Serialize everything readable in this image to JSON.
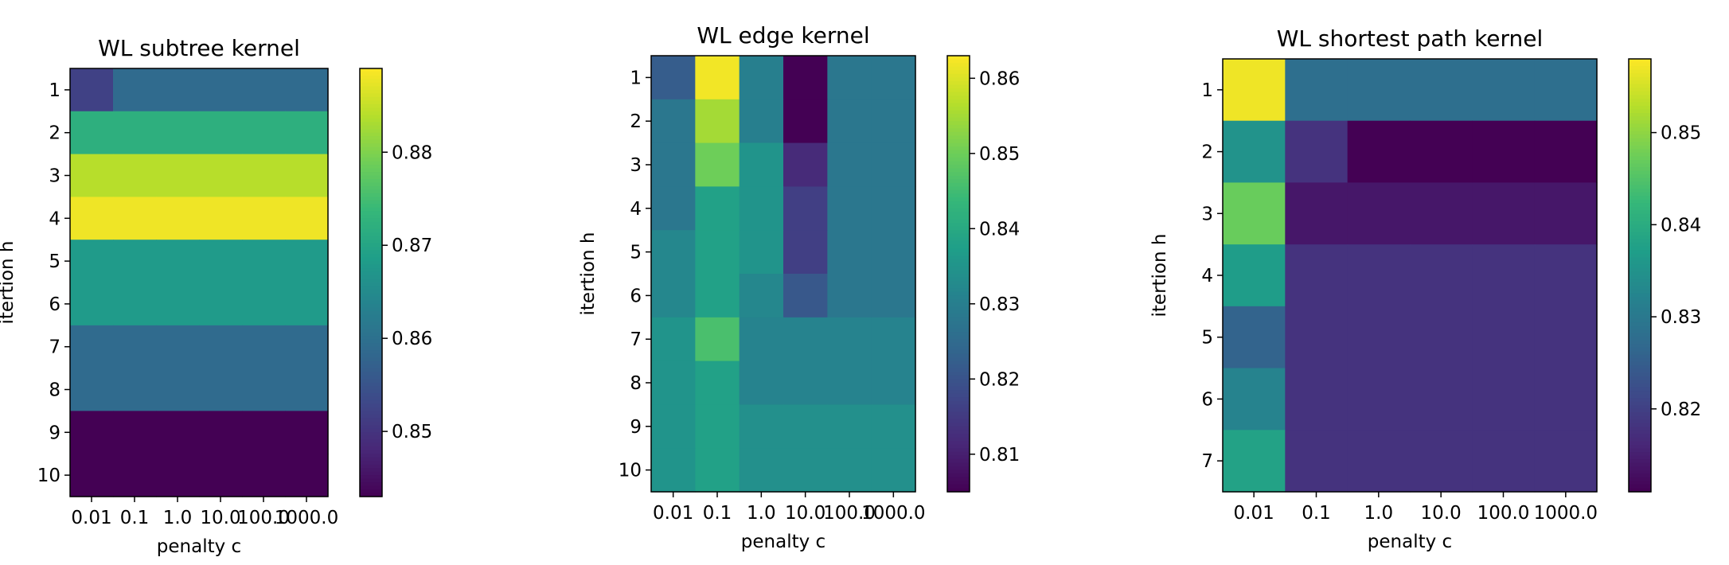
{
  "colormap": [
    "#440154",
    "#482878",
    "#3e4989",
    "#31688e",
    "#26828e",
    "#1f9e89",
    "#35b779",
    "#6ece58",
    "#b5de2b",
    "#fde725"
  ],
  "chart_data": [
    {
      "type": "heatmap",
      "title": "WL subtree kernel",
      "xlabel": "penalty c",
      "ylabel": "itertion h",
      "x_ticks": [
        "0.01",
        "0.1",
        "1.0",
        "10.0",
        "100.0",
        "1000.0"
      ],
      "y_ticks": [
        "1",
        "2",
        "3",
        "4",
        "5",
        "6",
        "7",
        "8",
        "9",
        "10"
      ],
      "values": [
        [
          0.852,
          0.859,
          0.859,
          0.859,
          0.859,
          0.859
        ],
        [
          0.872,
          0.872,
          0.872,
          0.872,
          0.872,
          0.872
        ],
        [
          0.884,
          0.884,
          0.884,
          0.884,
          0.884,
          0.884
        ],
        [
          0.888,
          0.888,
          0.888,
          0.888,
          0.888,
          0.888
        ],
        [
          0.868,
          0.868,
          0.868,
          0.868,
          0.868,
          0.868
        ],
        [
          0.868,
          0.868,
          0.868,
          0.868,
          0.868,
          0.868
        ],
        [
          0.859,
          0.859,
          0.859,
          0.859,
          0.859,
          0.859
        ],
        [
          0.859,
          0.859,
          0.859,
          0.859,
          0.859,
          0.859
        ],
        [
          0.843,
          0.843,
          0.843,
          0.843,
          0.843,
          0.843
        ],
        [
          0.843,
          0.843,
          0.843,
          0.843,
          0.843,
          0.843
        ]
      ],
      "vmin": 0.843,
      "vmax": 0.889,
      "colorbar_ticks": [
        "0.85",
        "0.86",
        "0.87",
        "0.88"
      ],
      "colorbar_tick_values": [
        0.85,
        0.86,
        0.87,
        0.88
      ]
    },
    {
      "type": "heatmap",
      "title": "WL edge kernel",
      "xlabel": "penalty c",
      "ylabel": "itertion h",
      "x_ticks": [
        "0.01",
        "0.1",
        "1.0",
        "10.0",
        "100.0",
        "1000.0"
      ],
      "y_ticks": [
        "1",
        "2",
        "3",
        "4",
        "5",
        "6",
        "7",
        "8",
        "9",
        "10"
      ],
      "values": [
        [
          0.822,
          0.862,
          0.83,
          0.805,
          0.828,
          0.828
        ],
        [
          0.828,
          0.855,
          0.83,
          0.805,
          0.828,
          0.828
        ],
        [
          0.828,
          0.85,
          0.835,
          0.812,
          0.828,
          0.828
        ],
        [
          0.828,
          0.838,
          0.835,
          0.816,
          0.828,
          0.828
        ],
        [
          0.832,
          0.838,
          0.835,
          0.816,
          0.828,
          0.828
        ],
        [
          0.832,
          0.838,
          0.832,
          0.821,
          0.828,
          0.828
        ],
        [
          0.835,
          0.846,
          0.831,
          0.831,
          0.831,
          0.831
        ],
        [
          0.835,
          0.838,
          0.831,
          0.831,
          0.831,
          0.831
        ],
        [
          0.835,
          0.838,
          0.834,
          0.834,
          0.834,
          0.834
        ],
        [
          0.835,
          0.838,
          0.834,
          0.834,
          0.834,
          0.834
        ]
      ],
      "vmin": 0.805,
      "vmax": 0.863,
      "colorbar_ticks": [
        "0.81",
        "0.82",
        "0.83",
        "0.84",
        "0.85",
        "0.86"
      ],
      "colorbar_tick_values": [
        0.81,
        0.82,
        0.83,
        0.84,
        0.85,
        0.86
      ]
    },
    {
      "type": "heatmap",
      "title": "WL shortest path kernel",
      "xlabel": "penalty c",
      "ylabel": "itertion h",
      "x_ticks": [
        "0.01",
        "0.1",
        "1.0",
        "10.0",
        "100.0",
        "1000.0"
      ],
      "y_ticks": [
        "1",
        "2",
        "3",
        "4",
        "5",
        "6",
        "7"
      ],
      "values": [
        [
          0.857,
          0.828,
          0.828,
          0.828,
          0.828,
          0.828
        ],
        [
          0.835,
          0.818,
          0.811,
          0.811,
          0.811,
          0.811
        ],
        [
          0.847,
          0.814,
          0.814,
          0.814,
          0.814,
          0.814
        ],
        [
          0.837,
          0.818,
          0.818,
          0.818,
          0.818,
          0.818
        ],
        [
          0.826,
          0.818,
          0.818,
          0.818,
          0.818,
          0.818
        ],
        [
          0.832,
          0.818,
          0.818,
          0.818,
          0.818,
          0.818
        ],
        [
          0.838,
          0.818,
          0.818,
          0.818,
          0.818,
          0.818
        ]
      ],
      "vmin": 0.811,
      "vmax": 0.858,
      "colorbar_ticks": [
        "0.82",
        "0.83",
        "0.84",
        "0.85"
      ],
      "colorbar_tick_values": [
        0.82,
        0.83,
        0.84,
        0.85
      ]
    }
  ]
}
